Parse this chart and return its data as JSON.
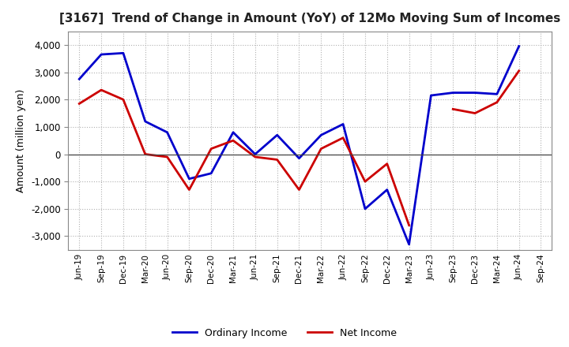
{
  "title": "[3167]  Trend of Change in Amount (YoY) of 12Mo Moving Sum of Incomes",
  "ylabel": "Amount (million yen)",
  "ylim": [
    -3500,
    4500
  ],
  "yticks": [
    -3000,
    -2000,
    -1000,
    0,
    1000,
    2000,
    3000,
    4000
  ],
  "background_color": "#ffffff",
  "grid_color": "#b0b0b0",
  "ordinary_income_color": "#0000cc",
  "net_income_color": "#cc0000",
  "ordinary_income_label": "Ordinary Income",
  "net_income_label": "Net Income",
  "x_labels": [
    "Jun-19",
    "Sep-19",
    "Dec-19",
    "Mar-20",
    "Jun-20",
    "Sep-20",
    "Dec-20",
    "Mar-21",
    "Jun-21",
    "Sep-21",
    "Dec-21",
    "Mar-22",
    "Jun-22",
    "Sep-22",
    "Dec-22",
    "Mar-23",
    "Jun-23",
    "Sep-23",
    "Dec-23",
    "Mar-24",
    "Jun-24",
    "Sep-24"
  ],
  "ordinary_income": [
    2750,
    3650,
    3700,
    1200,
    800,
    -900,
    -700,
    800,
    0,
    700,
    -150,
    700,
    1100,
    -2000,
    -1300,
    -3300,
    2150,
    2250,
    2250,
    2200,
    3950,
    null
  ],
  "net_income": [
    1850,
    2350,
    2000,
    0,
    -100,
    -1300,
    200,
    500,
    -100,
    -200,
    -1300,
    200,
    600,
    -1000,
    -350,
    -2600,
    null,
    1650,
    1500,
    1900,
    3050,
    null
  ]
}
